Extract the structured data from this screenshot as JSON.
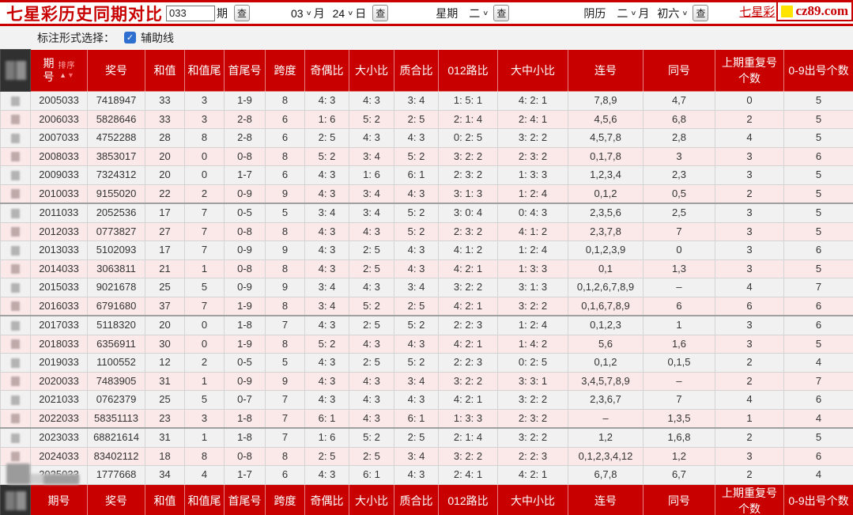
{
  "topbar": {
    "title": "七星彩历史同期对比",
    "issue_input": "033",
    "issue_unit": "期",
    "search_label": "查",
    "month_value": "03",
    "month_unit": "月",
    "day_value": "24",
    "day_unit": "日",
    "week_label": "星期",
    "week_value": "二",
    "lunar_label": "阴历",
    "lunar_month_value": "二",
    "lunar_month_unit": "月",
    "lunar_day_value": "初六",
    "site_link": "七星彩",
    "logo_text": "cz89.com",
    "accent_red": "#c80000",
    "logo_yellow": "#ffe400"
  },
  "toolbar": {
    "mark_label": "标注形式选择：",
    "aux_checkbox_label": "辅助线",
    "aux_checked": true,
    "check_glyph": "✓"
  },
  "table": {
    "sort_label": "排序",
    "columns": [
      "期号",
      "奖号",
      "和值",
      "和值尾",
      "首尾号",
      "跨度",
      "奇偶比",
      "大小比",
      "质合比",
      "012路比",
      "大中小比",
      "连号",
      "同号",
      "上期重复号个数",
      "0-9出号个数"
    ],
    "rows": [
      [
        "2005033",
        "7418947",
        "33",
        "3",
        "1-9",
        "8",
        "4: 3",
        "4: 3",
        "3: 4",
        "1: 5: 1",
        "4: 2: 1",
        "7,8,9",
        "4,7",
        "0",
        "5"
      ],
      [
        "2006033",
        "5828646",
        "33",
        "3",
        "2-8",
        "6",
        "1: 6",
        "5: 2",
        "2: 5",
        "2: 1: 4",
        "2: 4: 1",
        "4,5,6",
        "6,8",
        "2",
        "5"
      ],
      [
        "2007033",
        "4752288",
        "28",
        "8",
        "2-8",
        "6",
        "2: 5",
        "4: 3",
        "4: 3",
        "0: 2: 5",
        "3: 2: 2",
        "4,5,7,8",
        "2,8",
        "4",
        "5"
      ],
      [
        "2008033",
        "3853017",
        "20",
        "0",
        "0-8",
        "8",
        "5: 2",
        "3: 4",
        "5: 2",
        "3: 2: 2",
        "2: 3: 2",
        "0,1,7,8",
        "3",
        "3",
        "6"
      ],
      [
        "2009033",
        "7324312",
        "20",
        "0",
        "1-7",
        "6",
        "4: 3",
        "1: 6",
        "6: 1",
        "2: 3: 2",
        "1: 3: 3",
        "1,2,3,4",
        "2,3",
        "3",
        "5"
      ],
      [
        "2010033",
        "9155020",
        "22",
        "2",
        "0-9",
        "9",
        "4: 3",
        "3: 4",
        "4: 3",
        "3: 1: 3",
        "1: 2: 4",
        "0,1,2",
        "0,5",
        "2",
        "5"
      ],
      [
        "2011033",
        "2052536",
        "17",
        "7",
        "0-5",
        "5",
        "3: 4",
        "3: 4",
        "5: 2",
        "3: 0: 4",
        "0: 4: 3",
        "2,3,5,6",
        "2,5",
        "3",
        "5"
      ],
      [
        "2012033",
        "0773827",
        "27",
        "7",
        "0-8",
        "8",
        "4: 3",
        "4: 3",
        "5: 2",
        "2: 3: 2",
        "4: 1: 2",
        "2,3,7,8",
        "7",
        "3",
        "5"
      ],
      [
        "2013033",
        "5102093",
        "17",
        "7",
        "0-9",
        "9",
        "4: 3",
        "2: 5",
        "4: 3",
        "4: 1: 2",
        "1: 2: 4",
        "0,1,2,3,9",
        "0",
        "3",
        "6"
      ],
      [
        "2014033",
        "3063811",
        "21",
        "1",
        "0-8",
        "8",
        "4: 3",
        "2: 5",
        "4: 3",
        "4: 2: 1",
        "1: 3: 3",
        "0,1",
        "1,3",
        "3",
        "5"
      ],
      [
        "2015033",
        "9021678",
        "25",
        "5",
        "0-9",
        "9",
        "3: 4",
        "4: 3",
        "3: 4",
        "3: 2: 2",
        "3: 1: 3",
        "0,1,2,6,7,8,9",
        "–",
        "4",
        "7"
      ],
      [
        "2016033",
        "6791680",
        "37",
        "7",
        "1-9",
        "8",
        "3: 4",
        "5: 2",
        "2: 5",
        "4: 2: 1",
        "3: 2: 2",
        "0,1,6,7,8,9",
        "6",
        "6",
        "6"
      ],
      [
        "2017033",
        "5118320",
        "20",
        "0",
        "1-8",
        "7",
        "4: 3",
        "2: 5",
        "5: 2",
        "2: 2: 3",
        "1: 2: 4",
        "0,1,2,3",
        "1",
        "3",
        "6"
      ],
      [
        "2018033",
        "6356911",
        "30",
        "0",
        "1-9",
        "8",
        "5: 2",
        "4: 3",
        "4: 3",
        "4: 2: 1",
        "1: 4: 2",
        "5,6",
        "1,6",
        "3",
        "5"
      ],
      [
        "2019033",
        "1100552",
        "12",
        "2",
        "0-5",
        "5",
        "4: 3",
        "2: 5",
        "5: 2",
        "2: 2: 3",
        "0: 2: 5",
        "0,1,2",
        "0,1,5",
        "2",
        "4"
      ],
      [
        "2020033",
        "7483905",
        "31",
        "1",
        "0-9",
        "9",
        "4: 3",
        "4: 3",
        "3: 4",
        "3: 2: 2",
        "3: 3: 1",
        "3,4,5,7,8,9",
        "–",
        "2",
        "7"
      ],
      [
        "2021033",
        "0762379",
        "25",
        "5",
        "0-7",
        "7",
        "4: 3",
        "4: 3",
        "4: 3",
        "4: 2: 1",
        "3: 2: 2",
        "2,3,6,7",
        "7",
        "4",
        "6"
      ],
      [
        "2022033",
        "58351113",
        "23",
        "3",
        "1-8",
        "7",
        "6: 1",
        "4: 3",
        "6: 1",
        "1: 3: 3",
        "2: 3: 2",
        "–",
        "1,3,5",
        "1",
        "4"
      ],
      [
        "2023033",
        "68821614",
        "31",
        "1",
        "1-8",
        "7",
        "1: 6",
        "5: 2",
        "2: 5",
        "2: 1: 4",
        "3: 2: 2",
        "1,2",
        "1,6,8",
        "2",
        "5"
      ],
      [
        "2024033",
        "83402112",
        "18",
        "8",
        "0-8",
        "8",
        "2: 5",
        "2: 5",
        "3: 4",
        "3: 2: 2",
        "2: 2: 3",
        "0,1,2,3,4,12",
        "1,2",
        "3",
        "6"
      ],
      [
        "2025033",
        "1777668",
        "34",
        "4",
        "1-7",
        "6",
        "4: 3",
        "6: 1",
        "4: 3",
        "2: 4: 1",
        "4: 2: 1",
        "6,7,8",
        "6,7",
        "2",
        "4"
      ]
    ]
  }
}
